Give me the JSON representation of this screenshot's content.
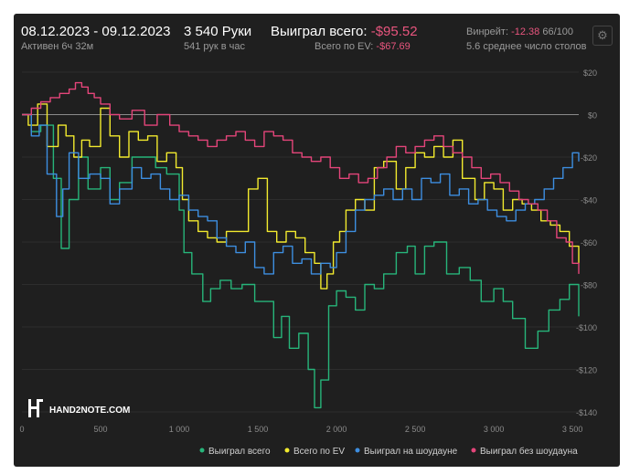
{
  "header": {
    "date_range": "08.12.2023 - 09.12.2023",
    "active_time": "Активен 6ч 32м",
    "hands": "3 540 Руки",
    "hands_per_hour": "541 рук в час",
    "won_total_label": "Выиграл всего:",
    "won_total_value": "-$95.52",
    "ev_total_label": "Всего по EV:",
    "ev_total_value": "-$67.69",
    "winrate_label": "Винрейт:",
    "winrate_value": "-12.38",
    "winrate_suffix": "66/100",
    "avg_tables": "5.6 среднее число столов"
  },
  "logo": {
    "text": "HAND2NOTE.COM"
  },
  "colors": {
    "won": "#27b57a",
    "ev": "#f2ea2e",
    "showdown": "#3d8ee0",
    "non_showdown": "#e4457a"
  },
  "icons": {
    "settings": "gear-icon"
  },
  "chart_data": {
    "type": "line",
    "xlabel": "",
    "ylabel": "",
    "xlim": [
      0,
      3540
    ],
    "ylim": [
      -140,
      20
    ],
    "x_ticks": [
      0,
      500,
      1000,
      1500,
      2000,
      2500,
      3000,
      3500
    ],
    "x_tick_labels": [
      "0",
      "500",
      "1 000",
      "1 500",
      "2 000",
      "2 500",
      "3 000",
      "3 500"
    ],
    "y_ticks": [
      20,
      0,
      -20,
      -40,
      -60,
      -80,
      -100,
      -120,
      -140
    ],
    "y_tick_labels": [
      "$20",
      "$0",
      "-$20",
      "-$40",
      "-$60",
      "-$80",
      "-$100",
      "-$120",
      "-$140"
    ],
    "grid": true,
    "legend_position": "bottom",
    "series": [
      {
        "name": "Выиграл всего",
        "x": [
          0,
          60,
          120,
          200,
          250,
          300,
          360,
          420,
          500,
          560,
          620,
          700,
          780,
          850,
          920,
          1000,
          1030,
          1080,
          1150,
          1200,
          1260,
          1330,
          1400,
          1480,
          1540,
          1600,
          1650,
          1700,
          1760,
          1820,
          1860,
          1900,
          1950,
          2000,
          2060,
          2120,
          2180,
          2240,
          2300,
          2380,
          2450,
          2500,
          2560,
          2620,
          2700,
          2780,
          2850,
          2920,
          3000,
          3060,
          3120,
          3200,
          3280,
          3350,
          3420,
          3480,
          3540
        ],
        "values": [
          0,
          -8,
          -5,
          -30,
          -63,
          -40,
          -20,
          -35,
          -25,
          -40,
          -32,
          -20,
          -20,
          -25,
          -28,
          -45,
          -65,
          -75,
          -88,
          -82,
          -78,
          -82,
          -80,
          -88,
          -88,
          -105,
          -95,
          -110,
          -103,
          -120,
          -138,
          -125,
          -90,
          -83,
          -86,
          -92,
          -80,
          -82,
          -75,
          -65,
          -62,
          -75,
          -62,
          -60,
          -75,
          -72,
          -78,
          -88,
          -82,
          -88,
          -96,
          -110,
          -102,
          -92,
          -87,
          -80,
          -95
        ]
      },
      {
        "name": "Всего по EV",
        "x": [
          0,
          40,
          100,
          160,
          230,
          280,
          330,
          380,
          430,
          500,
          560,
          620,
          680,
          740,
          800,
          860,
          920,
          980,
          1020,
          1060,
          1120,
          1180,
          1240,
          1300,
          1380,
          1440,
          1500,
          1560,
          1620,
          1680,
          1740,
          1800,
          1860,
          1900,
          1940,
          1980,
          2020,
          2060,
          2120,
          2180,
          2240,
          2300,
          2380,
          2440,
          2500,
          2560,
          2620,
          2680,
          2740,
          2800,
          2880,
          2940,
          3000,
          3060,
          3120,
          3180,
          3240,
          3300,
          3360,
          3420,
          3480,
          3540
        ],
        "values": [
          0,
          -5,
          5,
          -15,
          -5,
          -10,
          -20,
          -12,
          -15,
          3,
          -10,
          -20,
          -8,
          -12,
          -10,
          -22,
          -18,
          -25,
          -40,
          -50,
          -55,
          -58,
          -60,
          -55,
          -55,
          -35,
          -30,
          -55,
          -60,
          -55,
          -58,
          -65,
          -70,
          -82,
          -75,
          -60,
          -55,
          -45,
          -40,
          -45,
          -25,
          -22,
          -35,
          -25,
          -18,
          -20,
          -15,
          -20,
          -12,
          -30,
          -40,
          -32,
          -35,
          -45,
          -40,
          -42,
          -45,
          -50,
          -52,
          -55,
          -62,
          -70
        ]
      },
      {
        "name": "Выиграл на шоудауне",
        "x": [
          0,
          60,
          110,
          160,
          220,
          260,
          300,
          360,
          430,
          500,
          560,
          620,
          700,
          760,
          820,
          880,
          940,
          1000,
          1060,
          1120,
          1180,
          1240,
          1300,
          1360,
          1420,
          1480,
          1540,
          1600,
          1660,
          1720,
          1780,
          1840,
          1900,
          1960,
          2000,
          2060,
          2120,
          2180,
          2240,
          2300,
          2360,
          2420,
          2480,
          2540,
          2600,
          2660,
          2720,
          2780,
          2840,
          2900,
          2960,
          3020,
          3080,
          3140,
          3200,
          3260,
          3320,
          3380,
          3440,
          3500,
          3540
        ],
        "values": [
          0,
          -10,
          -5,
          -28,
          -48,
          -35,
          -18,
          -30,
          -28,
          -30,
          -42,
          -35,
          -25,
          -30,
          -28,
          -35,
          -40,
          -38,
          -45,
          -48,
          -50,
          -58,
          -62,
          -65,
          -60,
          -72,
          -75,
          -65,
          -62,
          -70,
          -68,
          -75,
          -70,
          -72,
          -65,
          -55,
          -45,
          -40,
          -38,
          -35,
          -40,
          -35,
          -40,
          -30,
          -32,
          -28,
          -38,
          -35,
          -42,
          -40,
          -45,
          -48,
          -50,
          -45,
          -42,
          -40,
          -35,
          -30,
          -25,
          -18,
          -22
        ]
      },
      {
        "name": "Выиграл без шоудауна",
        "x": [
          0,
          60,
          120,
          180,
          240,
          300,
          340,
          380,
          420,
          460,
          500,
          560,
          620,
          700,
          780,
          860,
          940,
          1000,
          1060,
          1120,
          1180,
          1240,
          1300,
          1360,
          1420,
          1480,
          1540,
          1600,
          1660,
          1720,
          1780,
          1840,
          1900,
          1960,
          2020,
          2080,
          2140,
          2200,
          2260,
          2320,
          2380,
          2440,
          2500,
          2560,
          2620,
          2680,
          2740,
          2800,
          2860,
          2920,
          2980,
          3040,
          3100,
          3160,
          3220,
          3280,
          3340,
          3400,
          3460,
          3500,
          3540
        ],
        "values": [
          0,
          3,
          6,
          8,
          10,
          12,
          15,
          13,
          10,
          8,
          5,
          0,
          -2,
          2,
          -5,
          0,
          -5,
          -8,
          -10,
          -12,
          -15,
          -12,
          -10,
          -8,
          -12,
          -15,
          -8,
          -10,
          -12,
          -18,
          -20,
          -22,
          -20,
          -25,
          -30,
          -28,
          -32,
          -30,
          -25,
          -20,
          -15,
          -18,
          -15,
          -12,
          -10,
          -15,
          -18,
          -20,
          -25,
          -30,
          -28,
          -32,
          -36,
          -40,
          -42,
          -45,
          -50,
          -58,
          -60,
          -70,
          -75
        ]
      }
    ]
  }
}
